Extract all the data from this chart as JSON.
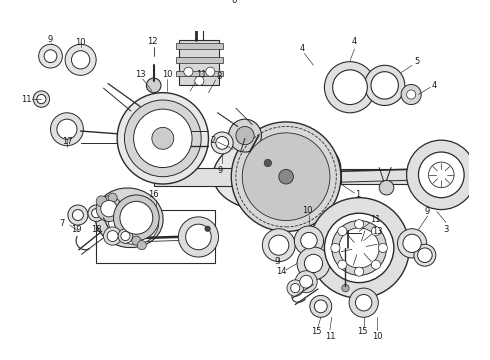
{
  "bg_color": "#ffffff",
  "line_color": "#2a2a2a",
  "text_color": "#1a1a1a",
  "fig_width": 4.9,
  "fig_height": 3.6,
  "dpi": 100
}
